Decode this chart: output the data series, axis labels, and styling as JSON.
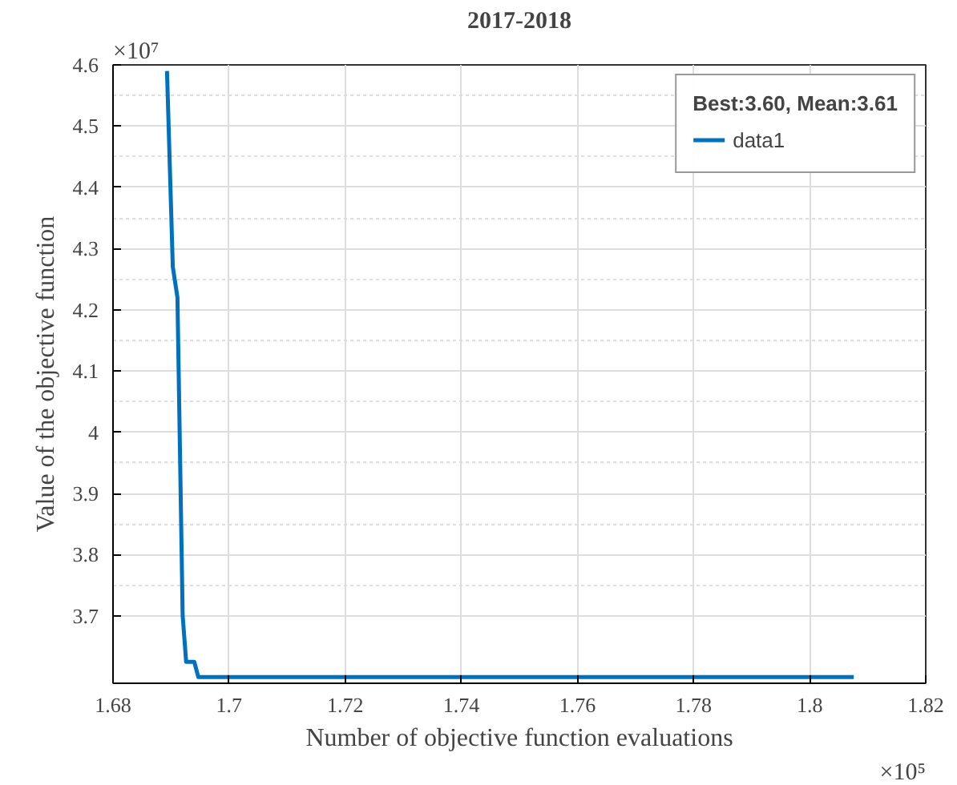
{
  "chart_data": {
    "type": "line",
    "title": "2017-2018",
    "xlabel": "Number of objective function evaluations",
    "ylabel": "Value of the objective function",
    "legend_title": "Best:3.60, Mean:3.61",
    "series": [
      {
        "name": "data1",
        "color": "#0072bd",
        "x": [
          1.6893,
          1.6903,
          1.6911,
          1.692,
          1.6926,
          1.694,
          1.6947,
          1.8076
        ],
        "values": [
          4.59,
          4.27,
          4.22,
          3.7,
          3.625,
          3.625,
          3.6,
          3.6
        ]
      }
    ],
    "xlim": [
      1.68,
      1.82
    ],
    "xticks": [
      1.68,
      1.7,
      1.72,
      1.74,
      1.76,
      1.78,
      1.8,
      1.82
    ],
    "ylim": [
      3.59,
      4.6
    ],
    "yticks": [
      3.7,
      3.8,
      3.9,
      4,
      4.1,
      4.2,
      4.3,
      4.4,
      4.5,
      4.6
    ],
    "annotations": [
      "×10⁷",
      "×10⁵"
    ],
    "grid": true,
    "legend": "top right",
    "marker": "none",
    "line_style": "solid"
  }
}
